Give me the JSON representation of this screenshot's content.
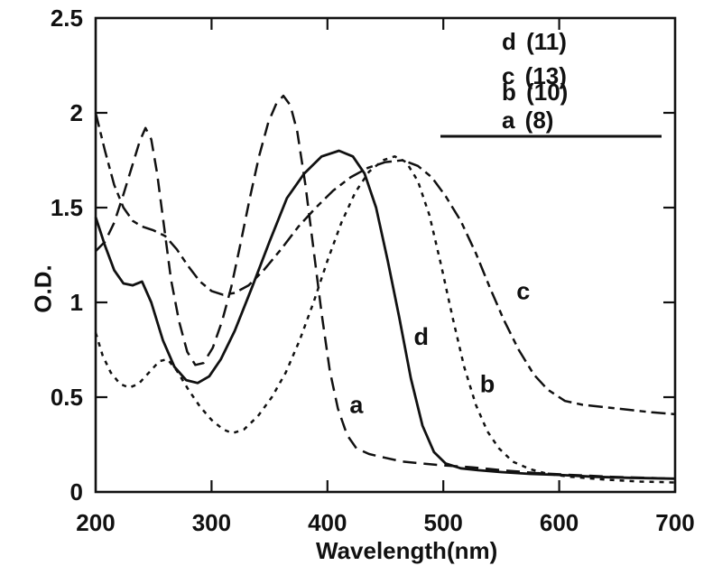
{
  "figure": {
    "background_color": "#ffffff",
    "ink_color": "#111111"
  },
  "chart_data": {
    "type": "line",
    "title": "",
    "xlabel": "Wavelength(nm)",
    "ylabel": "O.D.",
    "xlim": [
      200,
      700
    ],
    "ylim": [
      0,
      2.5
    ],
    "grid": false,
    "legend_position": "top-right-inside",
    "x_ticks": [
      200,
      300,
      400,
      500,
      600,
      700
    ],
    "x_tick_labels": [
      "200",
      "300",
      "400",
      "500",
      "600",
      "700"
    ],
    "y_ticks": [
      0,
      0.5,
      1,
      1.5,
      2,
      2.5
    ],
    "y_tick_labels": [
      "0",
      "0.5",
      "1",
      "1.5",
      "2",
      "2.5"
    ],
    "legend": [
      {
        "label": "d (11)",
        "series": "d"
      },
      {
        "label": "c (13)",
        "series": "c"
      },
      {
        "label": "b (10)",
        "series": "b"
      },
      {
        "label": "a (8)",
        "series": "a"
      }
    ],
    "annotations": [
      {
        "text": "a",
        "x": 425,
        "y": 0.46
      },
      {
        "text": "b",
        "x": 538,
        "y": 0.57
      },
      {
        "text": "c",
        "x": 569,
        "y": 1.06
      },
      {
        "text": "d",
        "x": 481,
        "y": 0.82
      }
    ],
    "series": [
      {
        "name": "c",
        "label": "c (13)",
        "dash": "long-short-dash",
        "points": [
          [
            200,
            2.0
          ],
          [
            208,
            1.8
          ],
          [
            216,
            1.62
          ],
          [
            224,
            1.5
          ],
          [
            232,
            1.43
          ],
          [
            240,
            1.4
          ],
          [
            250,
            1.38
          ],
          [
            260,
            1.35
          ],
          [
            270,
            1.28
          ],
          [
            280,
            1.19
          ],
          [
            290,
            1.11
          ],
          [
            300,
            1.06
          ],
          [
            310,
            1.04
          ],
          [
            320,
            1.05
          ],
          [
            332,
            1.09
          ],
          [
            345,
            1.17
          ],
          [
            360,
            1.28
          ],
          [
            375,
            1.4
          ],
          [
            390,
            1.5
          ],
          [
            405,
            1.59
          ],
          [
            420,
            1.66
          ],
          [
            435,
            1.71
          ],
          [
            450,
            1.74
          ],
          [
            465,
            1.75
          ],
          [
            478,
            1.72
          ],
          [
            490,
            1.66
          ],
          [
            502,
            1.56
          ],
          [
            515,
            1.43
          ],
          [
            528,
            1.26
          ],
          [
            540,
            1.08
          ],
          [
            552,
            0.91
          ],
          [
            565,
            0.75
          ],
          [
            578,
            0.62
          ],
          [
            590,
            0.54
          ],
          [
            605,
            0.48
          ],
          [
            620,
            0.46
          ],
          [
            650,
            0.44
          ],
          [
            680,
            0.42
          ],
          [
            700,
            0.41
          ]
        ]
      },
      {
        "name": "a",
        "label": "a (8)",
        "dash": "long-dash",
        "points": [
          [
            200,
            1.27
          ],
          [
            208,
            1.32
          ],
          [
            216,
            1.42
          ],
          [
            224,
            1.57
          ],
          [
            232,
            1.73
          ],
          [
            238,
            1.85
          ],
          [
            243,
            1.92
          ],
          [
            248,
            1.86
          ],
          [
            253,
            1.68
          ],
          [
            259,
            1.4
          ],
          [
            265,
            1.12
          ],
          [
            272,
            0.9
          ],
          [
            279,
            0.74
          ],
          [
            286,
            0.67
          ],
          [
            293,
            0.68
          ],
          [
            301,
            0.76
          ],
          [
            309,
            0.9
          ],
          [
            317,
            1.08
          ],
          [
            325,
            1.31
          ],
          [
            333,
            1.55
          ],
          [
            341,
            1.77
          ],
          [
            349,
            1.95
          ],
          [
            356,
            2.05
          ],
          [
            362,
            2.09
          ],
          [
            368,
            2.04
          ],
          [
            374,
            1.9
          ],
          [
            381,
            1.62
          ],
          [
            388,
            1.28
          ],
          [
            395,
            0.94
          ],
          [
            402,
            0.64
          ],
          [
            409,
            0.44
          ],
          [
            417,
            0.3
          ],
          [
            425,
            0.23
          ],
          [
            436,
            0.2
          ],
          [
            450,
            0.18
          ],
          [
            465,
            0.16
          ],
          [
            482,
            0.15
          ],
          [
            500,
            0.14
          ],
          [
            525,
            0.13
          ],
          [
            550,
            0.115
          ],
          [
            580,
            0.1
          ],
          [
            610,
            0.09
          ],
          [
            645,
            0.08
          ],
          [
            700,
            0.07
          ]
        ]
      },
      {
        "name": "b",
        "label": "b (10)",
        "dash": "short-dash",
        "points": [
          [
            200,
            0.84
          ],
          [
            206,
            0.72
          ],
          [
            213,
            0.63
          ],
          [
            221,
            0.57
          ],
          [
            229,
            0.55
          ],
          [
            237,
            0.57
          ],
          [
            246,
            0.63
          ],
          [
            255,
            0.69
          ],
          [
            262,
            0.7
          ],
          [
            270,
            0.64
          ],
          [
            280,
            0.54
          ],
          [
            290,
            0.45
          ],
          [
            300,
            0.38
          ],
          [
            310,
            0.33
          ],
          [
            318,
            0.31
          ],
          [
            328,
            0.33
          ],
          [
            340,
            0.4
          ],
          [
            352,
            0.5
          ],
          [
            364,
            0.63
          ],
          [
            376,
            0.8
          ],
          [
            388,
            1.0
          ],
          [
            400,
            1.22
          ],
          [
            412,
            1.42
          ],
          [
            424,
            1.58
          ],
          [
            436,
            1.69
          ],
          [
            448,
            1.75
          ],
          [
            458,
            1.77
          ],
          [
            468,
            1.74
          ],
          [
            478,
            1.64
          ],
          [
            488,
            1.46
          ],
          [
            498,
            1.2
          ],
          [
            508,
            0.92
          ],
          [
            518,
            0.66
          ],
          [
            528,
            0.46
          ],
          [
            538,
            0.32
          ],
          [
            548,
            0.23
          ],
          [
            560,
            0.16
          ],
          [
            575,
            0.12
          ],
          [
            590,
            0.095
          ],
          [
            610,
            0.08
          ],
          [
            640,
            0.065
          ],
          [
            670,
            0.055
          ],
          [
            700,
            0.05
          ]
        ]
      },
      {
        "name": "d",
        "label": "d (11)",
        "dash": "solid",
        "points": [
          [
            200,
            1.45
          ],
          [
            208,
            1.3
          ],
          [
            216,
            1.17
          ],
          [
            224,
            1.1
          ],
          [
            232,
            1.09
          ],
          [
            240,
            1.11
          ],
          [
            248,
            1.0
          ],
          [
            258,
            0.8
          ],
          [
            268,
            0.66
          ],
          [
            278,
            0.59
          ],
          [
            288,
            0.575
          ],
          [
            298,
            0.61
          ],
          [
            308,
            0.7
          ],
          [
            320,
            0.85
          ],
          [
            335,
            1.08
          ],
          [
            350,
            1.32
          ],
          [
            365,
            1.55
          ],
          [
            380,
            1.68
          ],
          [
            395,
            1.77
          ],
          [
            410,
            1.8
          ],
          [
            422,
            1.77
          ],
          [
            432,
            1.68
          ],
          [
            442,
            1.5
          ],
          [
            452,
            1.22
          ],
          [
            462,
            0.92
          ],
          [
            472,
            0.6
          ],
          [
            482,
            0.35
          ],
          [
            492,
            0.21
          ],
          [
            502,
            0.15
          ],
          [
            515,
            0.125
          ],
          [
            530,
            0.115
          ],
          [
            550,
            0.105
          ],
          [
            575,
            0.095
          ],
          [
            600,
            0.09
          ],
          [
            630,
            0.08
          ],
          [
            660,
            0.075
          ],
          [
            700,
            0.07
          ]
        ]
      }
    ]
  }
}
